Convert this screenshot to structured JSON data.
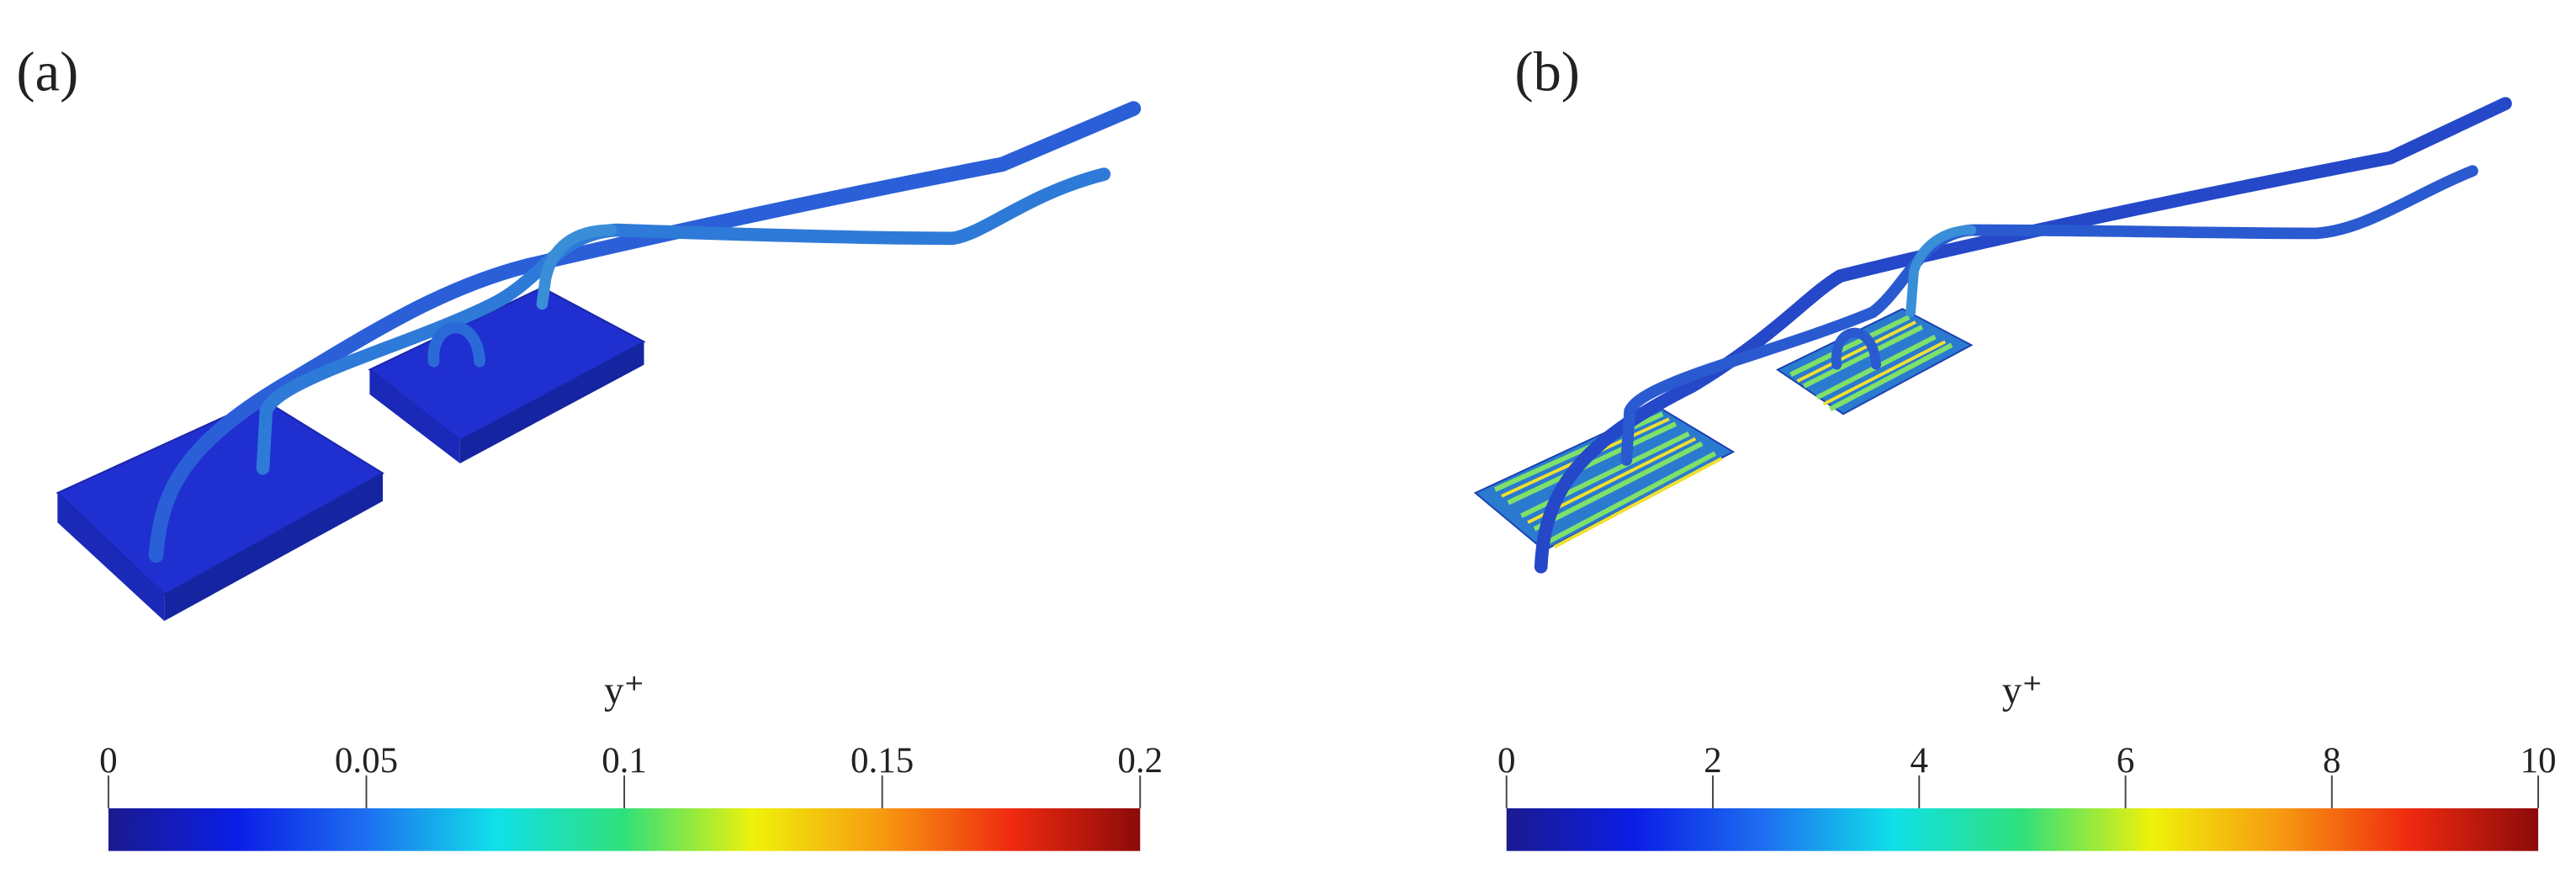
{
  "chart_data": [
    {
      "type": "colorbar",
      "panel_label": "(a)",
      "title": "y⁺",
      "xlim": [
        0,
        0.2
      ],
      "xticks": [
        0,
        0.05,
        0.1,
        0.15,
        0.2
      ],
      "colors": [
        "#1a1a8f",
        "#0b1ee6",
        "#1e6ff0",
        "#10e0e8",
        "#2fe07a",
        "#eef20a",
        "#f79a10",
        "#ef2a10",
        "#8c0a0a"
      ]
    },
    {
      "type": "colorbar",
      "panel_label": "(b)",
      "title": "y⁺",
      "xlim": [
        0,
        10
      ],
      "xticks": [
        0,
        2,
        4,
        6,
        8,
        10
      ],
      "colors": [
        "#1a1a8f",
        "#0b1ee6",
        "#1e6ff0",
        "#10e0e8",
        "#2fe07a",
        "#eef20a",
        "#f79a10",
        "#ef2a10",
        "#8c0a0a"
      ]
    }
  ]
}
